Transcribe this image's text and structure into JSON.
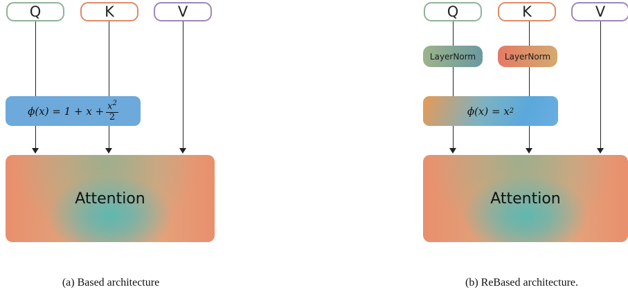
{
  "panel_a": {
    "inputs": {
      "q": "Q",
      "k": "K",
      "v": "V"
    },
    "feature_map": {
      "phi": "ϕ(x) = 1 + x + ",
      "num": "x",
      "num_sup": "2",
      "den": "2"
    },
    "attention": "Attention",
    "caption": "(a) Based architecture"
  },
  "panel_b": {
    "inputs": {
      "q": "Q",
      "k": "K",
      "v": "V"
    },
    "norm_q": "LayerNorm",
    "norm_k": "LayerNorm",
    "feature_map": {
      "phi": "ϕ(x) = x",
      "sup": "2"
    },
    "attention": "Attention",
    "caption": "(b) ReBased architecture."
  },
  "colors": {
    "q": "#8fb394",
    "k": "#e08868",
    "v": "#9e86b8",
    "phi": "#6da9db"
  }
}
